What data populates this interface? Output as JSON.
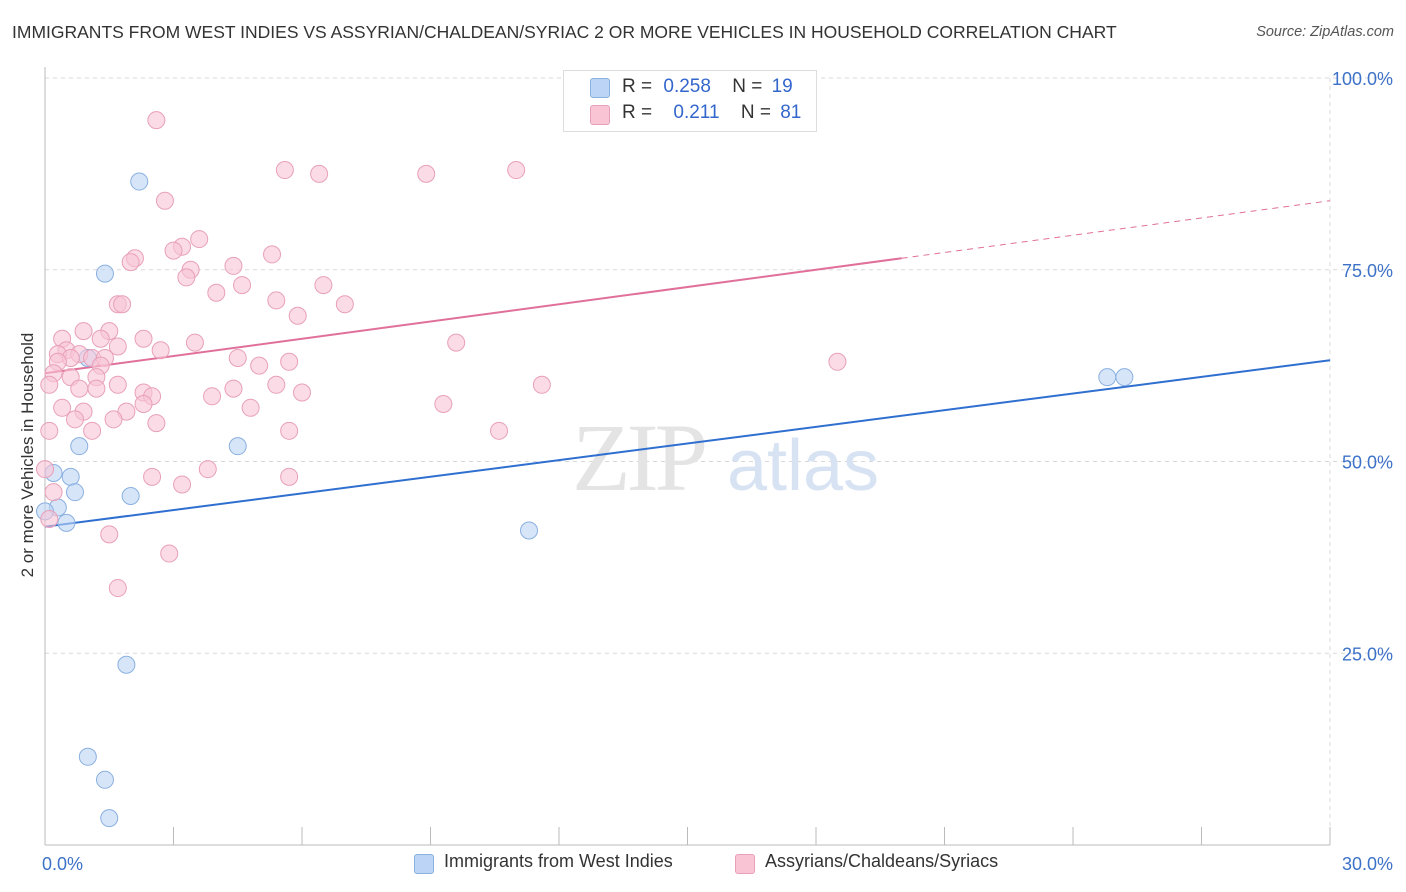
{
  "title": "IMMIGRANTS FROM WEST INDIES VS ASSYRIAN/CHALDEAN/SYRIAC 2 OR MORE VEHICLES IN HOUSEHOLD CORRELATION CHART",
  "source": "Source: ZipAtlas.com",
  "watermark": {
    "zip": "ZIP",
    "atlas": "atlas"
  },
  "legend": {
    "rows": [
      {
        "r_label": "R =",
        "r_value": "0.258",
        "n_label": "N =",
        "n_value": "19"
      },
      {
        "r_label": "R =",
        "r_value": "0.211",
        "n_label": "N =",
        "n_value": "81"
      }
    ]
  },
  "bottom_legend": {
    "series1": "Immigrants from West Indies",
    "series2": "Assyrians/Chaldeans/Syriacs"
  },
  "colors": {
    "blue_fill": "#bcd4f5",
    "blue_stroke": "#8ab0e0",
    "blue_line": "#2f6fcf",
    "pink_fill": "#f9c5d5",
    "pink_stroke": "#e8a0b8",
    "pink_line": "#e0709a",
    "axis_text": "#3d72c8"
  },
  "chart_data": {
    "type": "scatter",
    "title": "IMMIGRANTS FROM WEST INDIES VS ASSYRIAN/CHALDEAN/SYRIAC 2 OR MORE VEHICLES IN HOUSEHOLD CORRELATION CHART",
    "xlabel": "",
    "ylabel": "2 or more Vehicles in Household",
    "xlim": [
      0,
      30
    ],
    "ylim": [
      0,
      100
    ],
    "x_tick_labels": [
      "0.0%",
      "30.0%"
    ],
    "y_ticks": [
      25,
      50,
      75,
      100
    ],
    "y_tick_labels": [
      "25.0%",
      "50.0%",
      "75.0%",
      "100.0%"
    ],
    "grid": true,
    "series": [
      {
        "name": "Immigrants from West Indies",
        "color": "blue",
        "trend": {
          "x": [
            0,
            30
          ],
          "y": [
            41.5,
            63.2
          ],
          "dashed_from": null
        },
        "points": [
          {
            "x": 2.2,
            "y": 86.5
          },
          {
            "x": 1.4,
            "y": 74.5
          },
          {
            "x": 1.0,
            "y": 63.5
          },
          {
            "x": 0.8,
            "y": 52.0
          },
          {
            "x": 4.5,
            "y": 52.0
          },
          {
            "x": 0.2,
            "y": 48.5
          },
          {
            "x": 0.6,
            "y": 48.0
          },
          {
            "x": 0.7,
            "y": 46.0
          },
          {
            "x": 2.0,
            "y": 45.5
          },
          {
            "x": 0.3,
            "y": 44.0
          },
          {
            "x": 0.0,
            "y": 43.5
          },
          {
            "x": 0.5,
            "y": 42.0
          },
          {
            "x": 11.3,
            "y": 41.0
          },
          {
            "x": 24.8,
            "y": 61.0
          },
          {
            "x": 25.2,
            "y": 61.0
          },
          {
            "x": 1.9,
            "y": 23.5
          },
          {
            "x": 1.0,
            "y": 11.5
          },
          {
            "x": 1.4,
            "y": 8.5
          },
          {
            "x": 1.5,
            "y": 3.5
          }
        ]
      },
      {
        "name": "Assyrians/Chaldeans/Syriacs",
        "color": "pink",
        "trend": {
          "x": [
            0,
            30
          ],
          "y": [
            61.5,
            84.0
          ],
          "dashed_from": 20.0
        },
        "points": [
          {
            "x": 2.6,
            "y": 94.5
          },
          {
            "x": 5.6,
            "y": 88.0
          },
          {
            "x": 6.4,
            "y": 87.5
          },
          {
            "x": 8.9,
            "y": 87.5
          },
          {
            "x": 11.0,
            "y": 88.0
          },
          {
            "x": 2.8,
            "y": 84.0
          },
          {
            "x": 3.6,
            "y": 79.0
          },
          {
            "x": 3.2,
            "y": 78.0
          },
          {
            "x": 3.0,
            "y": 77.5
          },
          {
            "x": 5.3,
            "y": 77.0
          },
          {
            "x": 2.1,
            "y": 76.5
          },
          {
            "x": 2.0,
            "y": 76.0
          },
          {
            "x": 4.4,
            "y": 75.5
          },
          {
            "x": 3.4,
            "y": 75.0
          },
          {
            "x": 3.3,
            "y": 74.0
          },
          {
            "x": 4.6,
            "y": 73.0
          },
          {
            "x": 6.5,
            "y": 73.0
          },
          {
            "x": 4.0,
            "y": 72.0
          },
          {
            "x": 1.7,
            "y": 70.5
          },
          {
            "x": 1.8,
            "y": 70.5
          },
          {
            "x": 5.4,
            "y": 71.0
          },
          {
            "x": 7.0,
            "y": 70.5
          },
          {
            "x": 5.9,
            "y": 69.0
          },
          {
            "x": 0.9,
            "y": 67.0
          },
          {
            "x": 1.5,
            "y": 67.0
          },
          {
            "x": 0.4,
            "y": 66.0
          },
          {
            "x": 2.3,
            "y": 66.0
          },
          {
            "x": 1.3,
            "y": 66.0
          },
          {
            "x": 3.5,
            "y": 65.5
          },
          {
            "x": 9.6,
            "y": 65.5
          },
          {
            "x": 1.7,
            "y": 65.0
          },
          {
            "x": 0.5,
            "y": 64.5
          },
          {
            "x": 0.3,
            "y": 64.0
          },
          {
            "x": 0.8,
            "y": 64.0
          },
          {
            "x": 2.7,
            "y": 64.5
          },
          {
            "x": 0.6,
            "y": 63.5
          },
          {
            "x": 1.1,
            "y": 63.5
          },
          {
            "x": 1.4,
            "y": 63.5
          },
          {
            "x": 4.5,
            "y": 63.5
          },
          {
            "x": 5.7,
            "y": 63.0
          },
          {
            "x": 0.3,
            "y": 63.0
          },
          {
            "x": 1.3,
            "y": 62.5
          },
          {
            "x": 5.0,
            "y": 62.5
          },
          {
            "x": 18.5,
            "y": 63.0
          },
          {
            "x": 0.2,
            "y": 61.5
          },
          {
            "x": 0.6,
            "y": 61.0
          },
          {
            "x": 1.2,
            "y": 61.0
          },
          {
            "x": 0.1,
            "y": 60.0
          },
          {
            "x": 1.7,
            "y": 60.0
          },
          {
            "x": 5.4,
            "y": 60.0
          },
          {
            "x": 11.6,
            "y": 60.0
          },
          {
            "x": 0.8,
            "y": 59.5
          },
          {
            "x": 1.2,
            "y": 59.5
          },
          {
            "x": 4.4,
            "y": 59.5
          },
          {
            "x": 6.0,
            "y": 59.0
          },
          {
            "x": 2.3,
            "y": 59.0
          },
          {
            "x": 2.5,
            "y": 58.5
          },
          {
            "x": 3.9,
            "y": 58.5
          },
          {
            "x": 0.4,
            "y": 57.0
          },
          {
            "x": 2.3,
            "y": 57.5
          },
          {
            "x": 4.8,
            "y": 57.0
          },
          {
            "x": 9.3,
            "y": 57.5
          },
          {
            "x": 0.9,
            "y": 56.5
          },
          {
            "x": 1.9,
            "y": 56.5
          },
          {
            "x": 0.7,
            "y": 55.5
          },
          {
            "x": 1.6,
            "y": 55.5
          },
          {
            "x": 2.6,
            "y": 55.0
          },
          {
            "x": 1.1,
            "y": 54.0
          },
          {
            "x": 5.7,
            "y": 54.0
          },
          {
            "x": 10.6,
            "y": 54.0
          },
          {
            "x": 0.1,
            "y": 54.0
          },
          {
            "x": 3.8,
            "y": 49.0
          },
          {
            "x": 0.0,
            "y": 49.0
          },
          {
            "x": 2.5,
            "y": 48.0
          },
          {
            "x": 5.7,
            "y": 48.0
          },
          {
            "x": 3.2,
            "y": 47.0
          },
          {
            "x": 1.5,
            "y": 40.5
          },
          {
            "x": 2.9,
            "y": 38.0
          },
          {
            "x": 1.7,
            "y": 33.5
          },
          {
            "x": 0.1,
            "y": 42.5
          },
          {
            "x": 0.2,
            "y": 46.0
          }
        ]
      }
    ]
  }
}
